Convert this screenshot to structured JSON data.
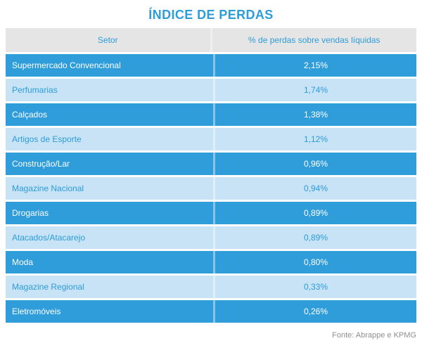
{
  "title": "ÍNDICE DE PERDAS",
  "table": {
    "headers": [
      "Setor",
      "% de perdas sobre vendas líquidas"
    ],
    "rows": [
      {
        "setor": "Supermercado Convencional",
        "perdas": "2,15%"
      },
      {
        "setor": "Perfumarias",
        "perdas": "1,74%"
      },
      {
        "setor": "Calçados",
        "perdas": "1,38%"
      },
      {
        "setor": "Artigos de Esporte",
        "perdas": "1,12%"
      },
      {
        "setor": "Construção/Lar",
        "perdas": "0,96%"
      },
      {
        "setor": "Magazine Nacional",
        "perdas": "0,94%"
      },
      {
        "setor": "Drogarias",
        "perdas": "0,89%"
      },
      {
        "setor": "Atacados/Atacarejo",
        "perdas": "0,89%"
      },
      {
        "setor": "Moda",
        "perdas": "0,80%"
      },
      {
        "setor": "Magazine Regional",
        "perdas": "0,33%"
      },
      {
        "setor": "Eletromóveis",
        "perdas": "0,26%"
      }
    ]
  },
  "footer": {
    "source": "Fonte: Abrappe e KPMG"
  },
  "colors": {
    "title_blue": "#2D9CDB",
    "row_dark_blue": "#309DDB",
    "row_light_blue": "#C7E3F5",
    "header_gray": "#E6E5E5",
    "dark_row_text": "#FFFFFF",
    "light_row_text": "#2D9CDB",
    "footer_gray": "#8F8F8F"
  },
  "chart_data": {
    "type": "table",
    "title": "ÍNDICE DE PERDAS",
    "columns": [
      "Setor",
      "% de perdas sobre vendas líquidas"
    ],
    "categories": [
      "Supermercado Convencional",
      "Perfumarias",
      "Calçados",
      "Artigos de Esporte",
      "Construção/Lar",
      "Magazine Nacional",
      "Drogarias",
      "Atacados/Atacarejo",
      "Moda",
      "Magazine Regional",
      "Eletromóveis"
    ],
    "values": [
      2.15,
      1.74,
      1.38,
      1.12,
      0.96,
      0.94,
      0.89,
      0.89,
      0.8,
      0.33,
      0.26
    ],
    "unit": "%",
    "source": "Fonte: Abrappe e KPMG"
  }
}
